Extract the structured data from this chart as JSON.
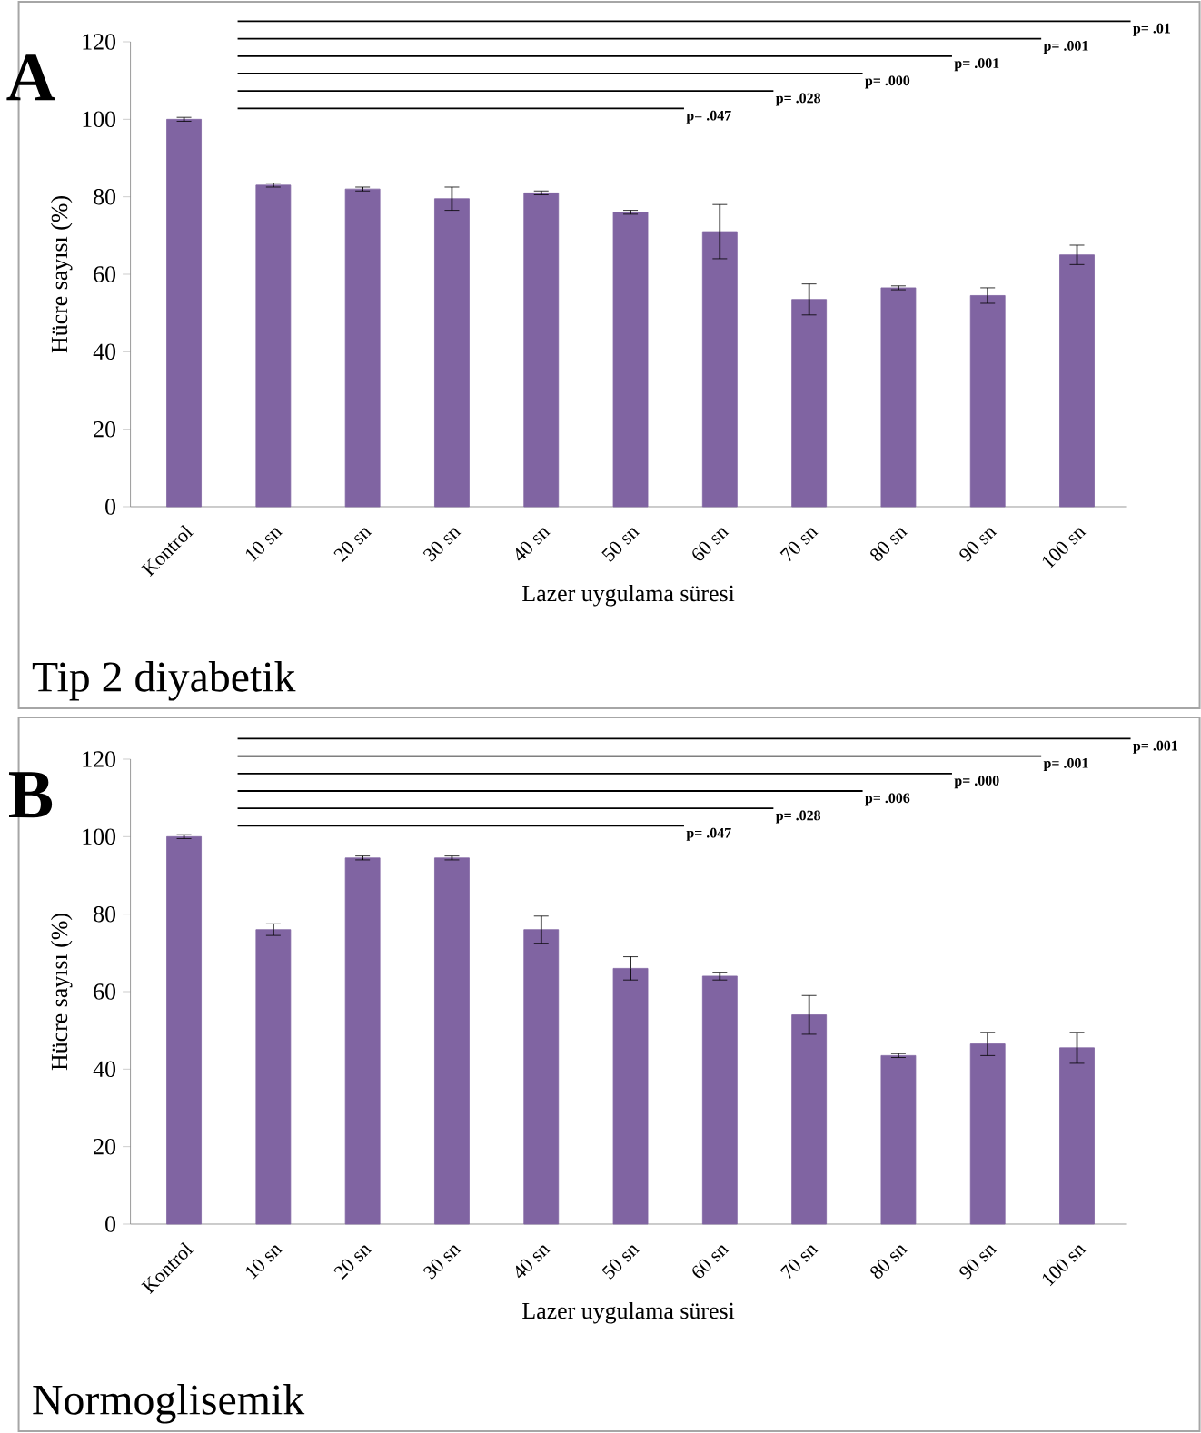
{
  "chart_data": [
    {
      "type": "bar",
      "title": "A",
      "xlabel": "Lazer uygulama süresi",
      "ylabel": "Hücre sayısı (%)",
      "categories": [
        "Kontrol",
        "10 sn",
        "20 sn",
        "30 sn",
        "40 sn",
        "50 sn",
        "60 sn",
        "70 sn",
        "80 sn",
        "90 sn",
        "100 sn"
      ],
      "values": [
        100,
        83,
        82,
        79.5,
        81,
        76,
        71,
        53.5,
        56.5,
        54.5,
        65
      ],
      "errors": [
        0.5,
        0.5,
        0.5,
        3,
        0.5,
        0.5,
        7,
        4,
        0.5,
        2,
        2.5
      ],
      "color": "#8064a2",
      "ylim": [
        0,
        120
      ],
      "yticks": [
        0,
        20,
        40,
        60,
        80,
        100,
        120
      ],
      "annotations": [
        "p= .047",
        "p= .028",
        "p= .000",
        "p= .001",
        "p= .001",
        "p= .01",
        "Tip 2 diyabetik"
      ]
    },
    {
      "type": "bar",
      "title": "B",
      "xlabel": "Lazer uygulama süresi",
      "ylabel": "Hücre sayısı (%)",
      "categories": [
        "Kontrol",
        "10 sn",
        "20 sn",
        "30 sn",
        "40 sn",
        "50 sn",
        "60 sn",
        "70 sn",
        "80 sn",
        "90 sn",
        "100 sn"
      ],
      "values": [
        100,
        76,
        94.5,
        94.5,
        76,
        66,
        64,
        54,
        43.5,
        46.5,
        45.5
      ],
      "errors": [
        0.5,
        1.5,
        0.5,
        0.5,
        3.5,
        3,
        1,
        5,
        0.5,
        3,
        4
      ],
      "color": "#8064a2",
      "ylim": [
        0,
        120
      ],
      "yticks": [
        0,
        20,
        40,
        60,
        80,
        100,
        120
      ],
      "annotations": [
        "p= .047",
        "p= .028",
        "p= .006",
        "p= .000",
        "p= .001",
        "p= .001",
        "Normoglisemik"
      ]
    }
  ]
}
